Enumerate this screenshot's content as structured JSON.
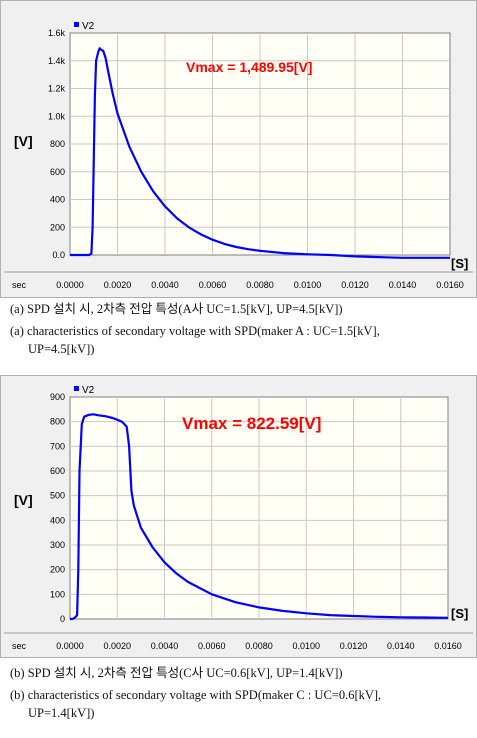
{
  "charts": [
    {
      "legend": "V2",
      "annotation": "Vmax = 1,489.95[V]",
      "ylabel": "[V]",
      "xunit": "[S]",
      "sec_label": "sec",
      "yticks": [
        "1.6k",
        "1.4k",
        "1.2k",
        "1.0k",
        "800",
        "600",
        "400",
        "200",
        "0.0"
      ],
      "xticks": [
        "0.0000",
        "0.0020",
        "0.0040",
        "0.0060",
        "0.0080",
        "0.0100",
        "0.0120",
        "0.0140",
        "0.0160"
      ],
      "caption_ko": "(a) SPD 설치 시, 2차측 전압 특성(A사 UC=1.5[kV], UP=4.5[kV])",
      "caption_en_1": "(a) characteristics of secondary voltage with SPD(maker A : UC=1.5[kV],",
      "caption_en_2": "UP=4.5[kV])"
    },
    {
      "legend": "V2",
      "annotation": "Vmax = 822.59[V]",
      "ylabel": "[V]",
      "xunit": "[S]",
      "sec_label": "sec",
      "yticks": [
        "900",
        "800",
        "700",
        "600",
        "500",
        "400",
        "300",
        "200",
        "100",
        "0"
      ],
      "xticks": [
        "0.0000",
        "0.0020",
        "0.0040",
        "0.0060",
        "0.0080",
        "0.0100",
        "0.0120",
        "0.0140",
        "0.0160"
      ],
      "caption_ko": "(b) SPD 설치 시, 2차측 전압 특성(C사 UC=0.6[kV], UP=1.4[kV])",
      "caption_en_1": "(b) characteristics of secondary voltage with SPD(maker C : UC=0.6[kV],",
      "caption_en_2": "UP=1.4[kV])"
    }
  ],
  "chart_data": [
    {
      "type": "line",
      "series": [
        {
          "name": "V2",
          "color": "#0000ff",
          "x": [
            0,
            0.0004,
            0.0008,
            0.0009,
            0.00095,
            0.001,
            0.00105,
            0.0011,
            0.0012,
            0.00125,
            0.0013,
            0.0014,
            0.0015,
            0.0016,
            0.0018,
            0.002,
            0.0025,
            0.003,
            0.0035,
            0.004,
            0.0045,
            0.005,
            0.0055,
            0.006,
            0.0065,
            0.007,
            0.0075,
            0.008,
            0.009,
            0.01,
            0.011,
            0.012,
            0.013,
            0.014,
            0.015,
            0.016
          ],
          "y": [
            0,
            0,
            0,
            10,
            200,
            700,
            1150,
            1400,
            1470,
            1490,
            1480,
            1470,
            1420,
            1330,
            1160,
            1020,
            780,
            600,
            460,
            350,
            265,
            200,
            150,
            110,
            80,
            58,
            42,
            30,
            14,
            5,
            0,
            -10,
            -15,
            -20,
            -20,
            -20
          ]
        }
      ],
      "ylim": [
        0,
        1600
      ],
      "xlim": [
        0,
        0.016
      ],
      "grid": true,
      "legend_position": "top-left"
    },
    {
      "type": "line",
      "series": [
        {
          "name": "V2",
          "color": "#0000ff",
          "x": [
            0,
            0.0001,
            0.0002,
            0.0003,
            0.00035,
            0.0004,
            0.0005,
            0.0006,
            0.0008,
            0.001,
            0.0012,
            0.0015,
            0.0018,
            0.002,
            0.0022,
            0.0024,
            0.0025,
            0.0026,
            0.0027,
            0.003,
            0.0035,
            0.004,
            0.0045,
            0.005,
            0.006,
            0.007,
            0.008,
            0.009,
            0.01,
            0.011,
            0.012,
            0.013,
            0.014,
            0.015,
            0.016
          ],
          "y": [
            0,
            0,
            5,
            15,
            200,
            600,
            790,
            820,
            828,
            830,
            826,
            822,
            815,
            808,
            800,
            780,
            700,
            520,
            460,
            370,
            290,
            230,
            185,
            150,
            100,
            68,
            47,
            33,
            23,
            16,
            12,
            9,
            7,
            6,
            5
          ]
        }
      ],
      "ylim": [
        0,
        900
      ],
      "xlim": [
        0,
        0.016
      ],
      "grid": true,
      "legend_position": "top-left"
    }
  ]
}
